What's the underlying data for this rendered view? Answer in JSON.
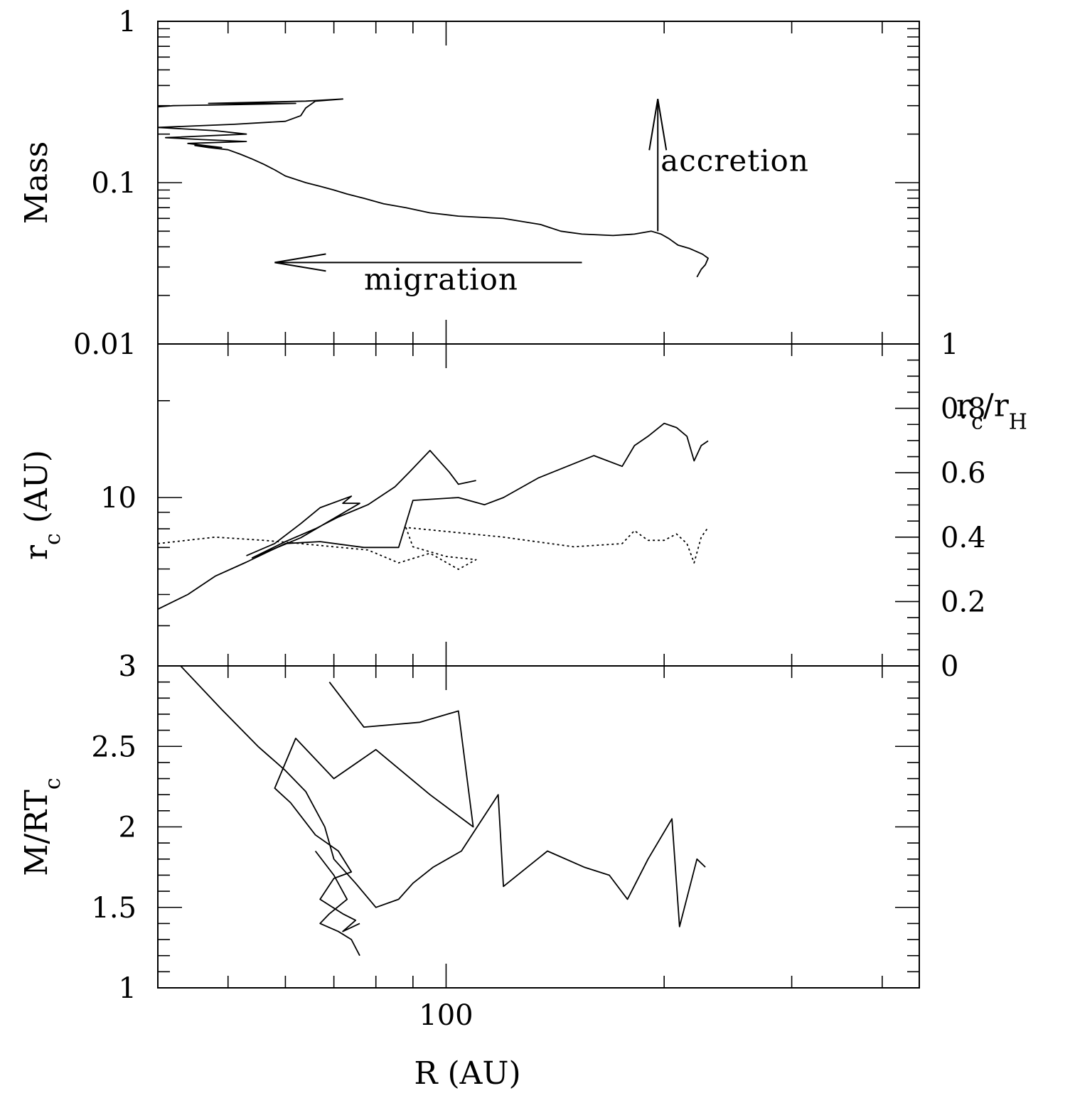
{
  "chart_data": [
    {
      "type": "line",
      "panel": "top",
      "ylabel": "Mass",
      "yscale": "log",
      "xscale": "log",
      "xlim": [
        40,
        450
      ],
      "ylim": [
        0.01,
        1
      ],
      "yticks": [
        {
          "value": 1,
          "label": "1"
        },
        {
          "value": 0.1,
          "label": "0.1"
        },
        {
          "value": 0.01,
          "label": "0.01"
        }
      ],
      "annotations": [
        {
          "text": "accretion",
          "arrow": "up",
          "x": 196,
          "y_from": 0.05,
          "y_to": 0.33
        },
        {
          "text": "migration",
          "arrow": "left",
          "y": 0.032,
          "x_from": 154,
          "x_to": 58
        }
      ],
      "series": [
        {
          "style": "solid",
          "points": [
            [
              222,
              0.026
            ],
            [
              225,
              0.029
            ],
            [
              228,
              0.031
            ],
            [
              230,
              0.034
            ],
            [
              226,
              0.036
            ],
            [
              217,
              0.039
            ],
            [
              209,
              0.041
            ],
            [
              203,
              0.045
            ],
            [
              198,
              0.048
            ],
            [
              192,
              0.05
            ],
            [
              182,
              0.048
            ],
            [
              170,
              0.047
            ],
            [
              154,
              0.048
            ],
            [
              144,
              0.05
            ],
            [
              135,
              0.055
            ],
            [
              120,
              0.06
            ],
            [
              104,
              0.062
            ],
            [
              95,
              0.065
            ],
            [
              88,
              0.07
            ],
            [
              82,
              0.074
            ],
            [
              77,
              0.08
            ],
            [
              73,
              0.085
            ],
            [
              70,
              0.09
            ],
            [
              67,
              0.095
            ],
            [
              64,
              0.1
            ],
            [
              60,
              0.11
            ],
            [
              58,
              0.12
            ],
            [
              56,
              0.13
            ],
            [
              54,
              0.14
            ],
            [
              52,
              0.15
            ],
            [
              50,
              0.16
            ],
            [
              47,
              0.165
            ],
            [
              45,
              0.17
            ],
            [
              49,
              0.165
            ],
            [
              44,
              0.175
            ],
            [
              53,
              0.18
            ],
            [
              46,
              0.185
            ],
            [
              41,
              0.19
            ],
            [
              53,
              0.2
            ],
            [
              48,
              0.21
            ],
            [
              40,
              0.22
            ],
            [
              51,
              0.23
            ],
            [
              60,
              0.24
            ],
            [
              63,
              0.26
            ],
            [
              64,
              0.29
            ],
            [
              66,
              0.32
            ],
            [
              72,
              0.33
            ],
            [
              64,
              0.32
            ],
            [
              47,
              0.31
            ],
            [
              62,
              0.31
            ],
            [
              52,
              0.305
            ],
            [
              42,
              0.3
            ],
            [
              40,
              0.295
            ],
            [
              40,
              0.29
            ]
          ]
        }
      ]
    },
    {
      "type": "line",
      "panel": "middle",
      "ylabel": "r_c (AU)",
      "y2label": "r_c/r_H",
      "yscale": "log",
      "xscale": "log",
      "xlim": [
        40,
        450
      ],
      "ylim": [
        3,
        30
      ],
      "yticks": [
        {
          "value": 10,
          "label": "10"
        },
        {
          "value": 3,
          "label": "3"
        }
      ],
      "y2lim": [
        0,
        1
      ],
      "y2ticks": [
        {
          "value": 0,
          "label": "0"
        },
        {
          "value": 0.2,
          "label": "0.2"
        },
        {
          "value": 0.4,
          "label": "0.4"
        },
        {
          "value": 0.6,
          "label": "0.6"
        },
        {
          "value": 0.8,
          "label": "0.8"
        },
        {
          "value": 1,
          "label": "1"
        }
      ],
      "series": [
        {
          "style": "solid",
          "axis": "left",
          "points": [
            [
              40,
              4.5
            ],
            [
              44,
              5.0
            ],
            [
              48,
              5.7
            ],
            [
              53,
              6.3
            ],
            [
              60,
              7.2
            ],
            [
              67,
              7.3
            ],
            [
              77,
              7.0
            ],
            [
              86,
              7.0
            ],
            [
              90,
              9.8
            ],
            [
              104,
              10.0
            ],
            [
              113,
              9.5
            ],
            [
              120,
              10.0
            ],
            [
              134,
              11.5
            ],
            [
              160,
              13.5
            ],
            [
              175,
              12.5
            ],
            [
              182,
              14.5
            ],
            [
              190,
              15.5
            ],
            [
              200,
              17.0
            ],
            [
              208,
              16.5
            ],
            [
              215,
              15.5
            ],
            [
              220,
              13.0
            ],
            [
              225,
              14.5
            ],
            [
              230,
              15.0
            ]
          ]
        },
        {
          "style": "solid",
          "axis": "left",
          "points": [
            [
              53,
              6.6
            ],
            [
              58,
              7.2
            ],
            [
              63,
              8.3
            ],
            [
              67,
              9.3
            ],
            [
              74,
              10.1
            ],
            [
              72,
              9.6
            ],
            [
              76,
              9.6
            ],
            [
              63,
              7.5
            ],
            [
              54,
              6.5
            ],
            [
              60,
              7.3
            ],
            [
              66,
              8.0
            ],
            [
              71,
              8.7
            ],
            [
              78,
              9.5
            ],
            [
              85,
              10.8
            ],
            [
              89,
              12.0
            ],
            [
              95,
              14.0
            ],
            [
              101,
              12.0
            ],
            [
              104,
              11.0
            ],
            [
              110,
              11.3
            ]
          ]
        },
        {
          "style": "dotted",
          "axis": "right",
          "points": [
            [
              40,
              0.38
            ],
            [
              48,
              0.4
            ],
            [
              56,
              0.39
            ],
            [
              63,
              0.38
            ],
            [
              70,
              0.37
            ],
            [
              78,
              0.36
            ],
            [
              86,
              0.32
            ],
            [
              95,
              0.35
            ],
            [
              104,
              0.3
            ],
            [
              110,
              0.33
            ],
            [
              100,
              0.34
            ],
            [
              90,
              0.37
            ],
            [
              88,
              0.43
            ],
            [
              120,
              0.4
            ],
            [
              150,
              0.37
            ],
            [
              175,
              0.38
            ],
            [
              182,
              0.42
            ],
            [
              190,
              0.39
            ],
            [
              200,
              0.39
            ],
            [
              208,
              0.41
            ],
            [
              215,
              0.38
            ],
            [
              220,
              0.32
            ],
            [
              225,
              0.4
            ],
            [
              230,
              0.43
            ]
          ]
        }
      ]
    },
    {
      "type": "line",
      "panel": "bottom",
      "ylabel": "M/RT_c",
      "xlabel": "R (AU)",
      "xscale": "log",
      "xlim": [
        40,
        450
      ],
      "ylim": [
        1,
        3
      ],
      "yticks": [
        {
          "value": 1,
          "label": "1"
        },
        {
          "value": 1.5,
          "label": "1.5"
        },
        {
          "value": 2,
          "label": "2"
        },
        {
          "value": 2.5,
          "label": "2.5"
        },
        {
          "value": 3,
          "label": "3"
        }
      ],
      "xticks": [
        {
          "value": 100,
          "label": "100"
        }
      ],
      "series": [
        {
          "style": "solid",
          "points": [
            [
              43,
              3.0
            ],
            [
              49,
              2.73
            ],
            [
              55,
              2.5
            ],
            [
              60,
              2.35
            ],
            [
              64,
              2.22
            ],
            [
              68,
              2.0
            ],
            [
              70,
              1.8
            ],
            [
              75,
              1.65
            ],
            [
              80,
              1.5
            ],
            [
              86,
              1.55
            ],
            [
              90,
              1.65
            ],
            [
              96,
              1.75
            ],
            [
              105,
              1.85
            ],
            [
              118,
              2.2
            ],
            [
              120,
              1.63
            ],
            [
              138,
              1.85
            ],
            [
              155,
              1.75
            ],
            [
              168,
              1.7
            ],
            [
              178,
              1.55
            ],
            [
              190,
              1.8
            ],
            [
              205,
              2.05
            ],
            [
              210,
              1.38
            ],
            [
              222,
              1.8
            ],
            [
              228,
              1.75
            ]
          ]
        },
        {
          "style": "solid",
          "points": [
            [
              69,
              2.9
            ],
            [
              77,
              2.62
            ],
            [
              92,
              2.65
            ],
            [
              104,
              2.72
            ],
            [
              109,
              2.0
            ],
            [
              95,
              2.2
            ],
            [
              80,
              2.48
            ],
            [
              70,
              2.3
            ],
            [
              62,
              2.55
            ],
            [
              58,
              2.24
            ],
            [
              61,
              2.15
            ],
            [
              66,
              1.95
            ],
            [
              71,
              1.85
            ],
            [
              74,
              1.72
            ],
            [
              70,
              1.68
            ],
            [
              67,
              1.55
            ],
            [
              72,
              1.46
            ],
            [
              75,
              1.42
            ],
            [
              72,
              1.35
            ],
            [
              76,
              1.4
            ]
          ]
        },
        {
          "style": "solid",
          "points": [
            [
              66,
              1.85
            ],
            [
              70,
              1.7
            ],
            [
              73,
              1.55
            ],
            [
              69,
              1.46
            ],
            [
              67,
              1.4
            ],
            [
              71,
              1.35
            ],
            [
              74,
              1.3
            ],
            [
              76,
              1.2
            ]
          ]
        }
      ]
    }
  ]
}
